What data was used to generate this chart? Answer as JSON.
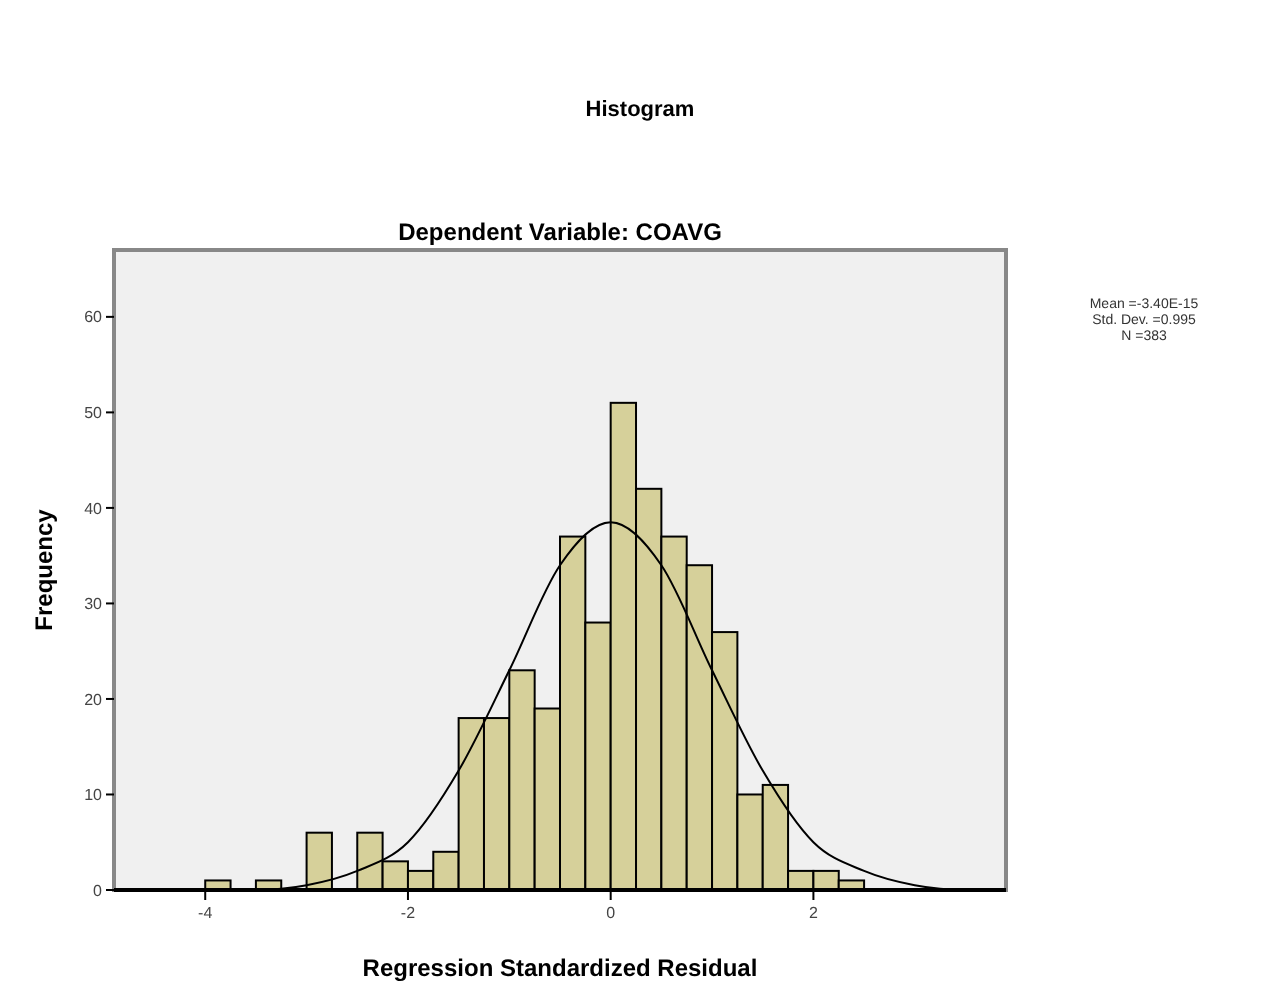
{
  "chart_data": {
    "type": "histogram",
    "title": "Histogram",
    "subtitle": "Dependent Variable: COAVG",
    "xlabel": "Regression Standardized Residual",
    "ylabel": "Frequency",
    "annotations": [
      "Mean =-3.40E-15",
      "Std. Dev. =0.995",
      "N =383"
    ],
    "xlim": [
      -4.9,
      3.9
    ],
    "xticks": [
      -4,
      -2,
      0,
      2
    ],
    "ylim": [
      0,
      67
    ],
    "yticks": [
      0,
      10,
      20,
      30,
      40,
      50,
      60
    ],
    "grid": false,
    "series": [
      {
        "color": "#d6d09a",
        "bins": [
          -4,
          -3.75,
          -3.5,
          -3.25,
          -3,
          -2.75,
          -2.5,
          -2.25,
          -2,
          -1.75,
          -1.5,
          -1.25,
          -1,
          -0.75,
          -0.5,
          -0.25,
          0,
          0.25,
          0.5,
          0.75,
          1,
          1.25,
          1.5,
          1.75,
          2,
          2.25,
          2.5
        ],
        "values": [
          1,
          0,
          1,
          0,
          6,
          0,
          6,
          3,
          2,
          4,
          18,
          18,
          23,
          19,
          37,
          28,
          51,
          42,
          37,
          34,
          27,
          10,
          11,
          2,
          2,
          1
        ]
      },
      {
        "type": "line",
        "color": "#000000",
        "x": [
          -4.9,
          -4.5,
          -4,
          -3.5,
          -3,
          -2.5,
          -2,
          -1.5,
          -1,
          -0.5,
          0,
          0.5,
          1,
          1.5,
          2,
          2.5,
          3,
          3.5,
          3.9
        ],
        "values": [
          0,
          0,
          0,
          0,
          0.5,
          2,
          5,
          12.5,
          23,
          34,
          38.5,
          34,
          23,
          12.5,
          5,
          2,
          0.5,
          0,
          0
        ]
      }
    ]
  }
}
